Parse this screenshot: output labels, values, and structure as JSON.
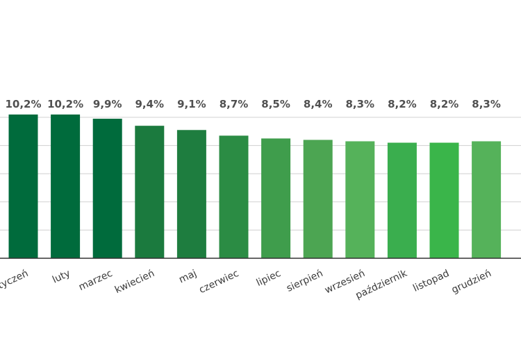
{
  "chart_data": {
    "type": "bar",
    "categories": [
      "styczeń",
      "luty",
      "marzec",
      "kwiecień",
      "maj",
      "czerwiec",
      "lipiec",
      "sierpień",
      "wrzesień",
      "październik",
      "listopad",
      "grudzień"
    ],
    "values": [
      10.2,
      10.2,
      9.9,
      9.4,
      9.1,
      8.7,
      8.5,
      8.4,
      8.3,
      8.2,
      8.2,
      8.3
    ],
    "value_labels": [
      "10,2%",
      "10,2%",
      "9,9%",
      "9,4%",
      "9,1%",
      "8,7%",
      "8,5%",
      "8,4%",
      "8,3%",
      "8,2%",
      "8,2%",
      "8,3%"
    ],
    "bar_colors": [
      "#006b3c",
      "#006b3c",
      "#006b3c",
      "#1b7a3e",
      "#1e7d3f",
      "#2b8c44",
      "#3f9d4c",
      "#4ca552",
      "#55b25a",
      "#3aae4e",
      "#3ab54a",
      "#55b25a"
    ],
    "grid_color": "#d0d0d0",
    "axis_color": "#333333",
    "ylim": [
      0,
      10
    ],
    "grid": true,
    "title": "",
    "xlabel": "",
    "ylabel": ""
  }
}
